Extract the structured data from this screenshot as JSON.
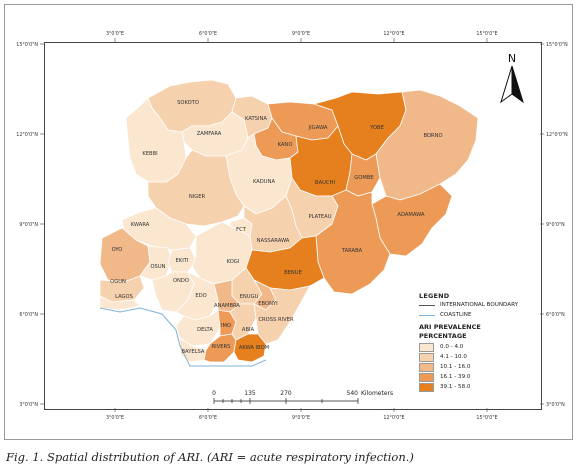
{
  "map": {
    "coord_labels": {
      "top": [
        "3°0'0\"E",
        "6°0'0\"E",
        "9°0'0\"E",
        "12°0'0\"E",
        "15°0'0\"E"
      ],
      "bottom": [
        "3°0'0\"E",
        "6°0'0\"E",
        "9°0'0\"E",
        "12°0'0\"E",
        "15°0'0\"E"
      ],
      "left": [
        "15°0'0\"N",
        "12°0'0\"N",
        "9°0'0\"N",
        "6°0'0\"N",
        "3°0'0\"N"
      ],
      "right": [
        "15°0'0\"N",
        "12°0'0\"N",
        "9°0'0\"N",
        "6°0'0\"N",
        "3°0'0\"N"
      ]
    },
    "north_label": "N",
    "scale": {
      "ticks": [
        "0",
        "135",
        "270",
        "540"
      ],
      "unit": "Kilometers"
    },
    "states": [
      {
        "name": "SOKOTO",
        "cls": 2
      },
      {
        "name": "ZAMFARA",
        "cls": 1
      },
      {
        "name": "KATSINA",
        "cls": 2
      },
      {
        "name": "KEBBI",
        "cls": 1
      },
      {
        "name": "JIGAWA",
        "cls": 4
      },
      {
        "name": "KANO",
        "cls": 4
      },
      {
        "name": "YOBE",
        "cls": 5
      },
      {
        "name": "BORNO",
        "cls": 3
      },
      {
        "name": "BAUCHI",
        "cls": 5
      },
      {
        "name": "GOMBE",
        "cls": 4
      },
      {
        "name": "KADUNA",
        "cls": 1
      },
      {
        "name": "NIGER",
        "cls": 2
      },
      {
        "name": "KWARA",
        "cls": 1
      },
      {
        "name": "FCT",
        "cls": 1
      },
      {
        "name": "PLATEAU",
        "cls": 2
      },
      {
        "name": "ADAMAWA",
        "cls": 4
      },
      {
        "name": "NASSARAWA",
        "cls": 2
      },
      {
        "name": "TARABA",
        "cls": 4
      },
      {
        "name": "OYO",
        "cls": 3
      },
      {
        "name": "OSUN",
        "cls": 1
      },
      {
        "name": "EKITI",
        "cls": 1
      },
      {
        "name": "KOGI",
        "cls": 1
      },
      {
        "name": "BENUE",
        "cls": 5
      },
      {
        "name": "OGUN",
        "cls": 2
      },
      {
        "name": "ONDO",
        "cls": 1
      },
      {
        "name": "LAGOS",
        "cls": 1
      },
      {
        "name": "EDO",
        "cls": 1
      },
      {
        "name": "ENUGU",
        "cls": 2
      },
      {
        "name": "ANAMBRA",
        "cls": 3
      },
      {
        "name": "EBONYI",
        "cls": 3
      },
      {
        "name": "DELTA",
        "cls": 1
      },
      {
        "name": "IMO",
        "cls": 4
      },
      {
        "name": "ABIA",
        "cls": 2
      },
      {
        "name": "CROSS RIVER",
        "cls": 2
      },
      {
        "name": "BAYELSA",
        "cls": 1
      },
      {
        "name": "RIVERS",
        "cls": 4
      },
      {
        "name": "AKWA IBOM",
        "cls": 5
      }
    ]
  },
  "legend": {
    "title": "LEGEND",
    "boundary_label": "INTERNATIONAL BOUNDARY",
    "coastline_label": "COASTLINE",
    "subtitle_line1": "ARI PREVALENCE",
    "subtitle_line2": "PERCENTAGE",
    "classes": [
      {
        "label": "0.0 - 4.0",
        "color": "#fbe6cf"
      },
      {
        "label": "4.1 - 10.0",
        "color": "#f6d1ad"
      },
      {
        "label": "10.1 - 16.0",
        "color": "#f1b88a"
      },
      {
        "label": "16.1 - 39.0",
        "color": "#ec9a56"
      },
      {
        "label": "39.1 - 58.0",
        "color": "#e6801f"
      }
    ],
    "boundary_color": "#555555",
    "coastline_color": "#7fb2d6"
  },
  "caption": "Fig. 1. Spatial distribution of ARI. (ARI = acute respiratory infection.)"
}
